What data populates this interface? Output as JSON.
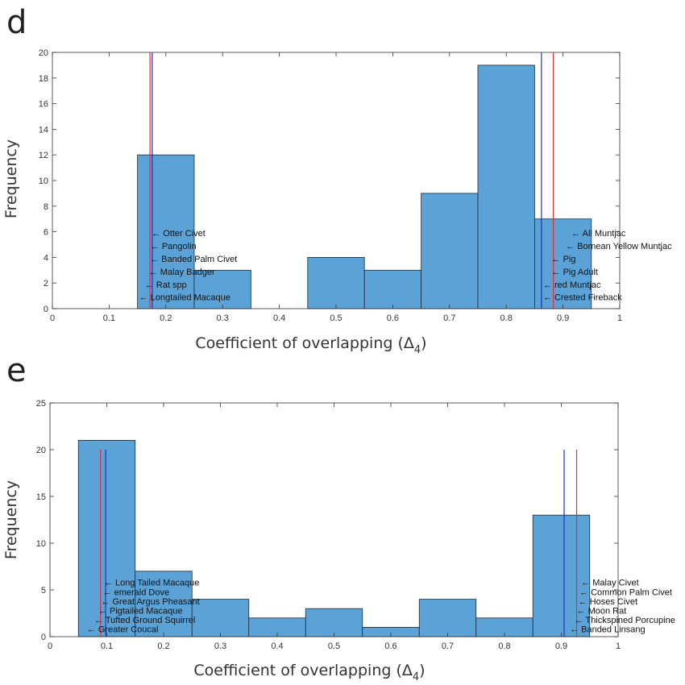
{
  "panels": [
    {
      "letter": "d",
      "ylabel": "Frequency",
      "xlabel_pre": "Coefficient of overlapping (Δ",
      "xlabel_sub": "4",
      "xlabel_post": ")"
    },
    {
      "letter": "e",
      "ylabel": "Frequency",
      "xlabel_pre": "Coefficient of overlapping (Δ",
      "xlabel_sub": "4",
      "xlabel_post": ")"
    }
  ],
  "chart_data": [
    {
      "type": "bar",
      "title": "",
      "xlabel": "Coefficient of overlapping (Δ4)",
      "ylabel": "Frequency",
      "xlim": [
        0,
        1
      ],
      "ylim": [
        0,
        20
      ],
      "xticks": [
        0,
        0.1,
        0.2,
        0.3,
        0.4,
        0.5,
        0.6,
        0.7,
        0.8,
        0.9,
        1
      ],
      "yticks": [
        0,
        2,
        4,
        6,
        8,
        10,
        12,
        14,
        16,
        18,
        20
      ],
      "bin_edges": [
        0.15,
        0.25,
        0.35,
        0.45,
        0.55,
        0.65,
        0.75,
        0.85,
        0.95
      ],
      "counts": [
        12,
        3,
        0,
        4,
        3,
        9,
        19,
        7
      ],
      "vlines": [
        {
          "x": 0.172,
          "color": "#e03030"
        },
        {
          "x": 0.176,
          "color": "#2030c0"
        },
        {
          "x": 0.862,
          "color": "#2030c0"
        },
        {
          "x": 0.883,
          "color": "#e03030"
        }
      ],
      "annotations": [
        {
          "text": "Otter Civet",
          "x": 0.175,
          "y": 5.9
        },
        {
          "text": "Pangolin",
          "x": 0.173,
          "y": 4.9
        },
        {
          "text": "Banded Palm Civet",
          "x": 0.172,
          "y": 3.9
        },
        {
          "text": "Malay Badger",
          "x": 0.17,
          "y": 2.9
        },
        {
          "text": "Rat spp",
          "x": 0.163,
          "y": 1.9
        },
        {
          "text": "Longtailed Macaque",
          "x": 0.153,
          "y": 0.9
        },
        {
          "text": "All Muntjac",
          "x": 0.915,
          "y": 5.9
        },
        {
          "text": "Bornean Yellow Muntjac",
          "x": 0.905,
          "y": 4.9
        },
        {
          "text": "Pig",
          "x": 0.88,
          "y": 3.9
        },
        {
          "text": "Pig Adult",
          "x": 0.88,
          "y": 2.9
        },
        {
          "text": "red Muntjac",
          "x": 0.865,
          "y": 1.9
        },
        {
          "text": "Crested Fireback",
          "x": 0.865,
          "y": 0.9
        }
      ]
    },
    {
      "type": "bar",
      "title": "",
      "xlabel": "Coefficient of overlapping (Δ4)",
      "ylabel": "Frequency",
      "xlim": [
        0,
        1
      ],
      "ylim": [
        0,
        25
      ],
      "xticks": [
        0,
        0.1,
        0.2,
        0.3,
        0.4,
        0.5,
        0.6,
        0.7,
        0.8,
        0.9,
        1
      ],
      "yticks": [
        0,
        5,
        10,
        15,
        20,
        25
      ],
      "bin_edges": [
        0.05,
        0.15,
        0.25,
        0.35,
        0.45,
        0.55,
        0.65,
        0.75,
        0.85,
        0.95
      ],
      "counts": [
        21,
        7,
        4,
        2,
        3,
        1,
        4,
        2,
        13
      ],
      "vlines": [
        {
          "x": 0.089,
          "color": "#e03030",
          "ymax": 20
        },
        {
          "x": 0.098,
          "color": "#2030c0",
          "ymax": 20
        },
        {
          "x": 0.905,
          "color": "#2030c0",
          "ymax": 20
        },
        {
          "x": 0.927,
          "color": "#e03030",
          "ymax": 20
        }
      ],
      "annotations": [
        {
          "text": "Long Tailed Macaque",
          "x": 0.095,
          "y": 5.8
        },
        {
          "text": "emerald Dove",
          "x": 0.093,
          "y": 4.8
        },
        {
          "text": "Great Argus Pheasant",
          "x": 0.09,
          "y": 3.8
        },
        {
          "text": "Pigtailed Macaque",
          "x": 0.085,
          "y": 2.8
        },
        {
          "text": "Tufted Ground Squirrel",
          "x": 0.078,
          "y": 1.8
        },
        {
          "text": "Greater Coucal",
          "x": 0.065,
          "y": 0.8
        },
        {
          "text": "Malay Civet",
          "x": 0.935,
          "y": 5.8
        },
        {
          "text": "Common Palm Civet",
          "x": 0.932,
          "y": 4.8
        },
        {
          "text": "Hoses Civet",
          "x": 0.93,
          "y": 3.8
        },
        {
          "text": "Moon Rat",
          "x": 0.927,
          "y": 2.8
        },
        {
          "text": "Thickspined Porcupine",
          "x": 0.923,
          "y": 1.8
        },
        {
          "text": "Banded Linsang",
          "x": 0.915,
          "y": 0.8
        }
      ]
    }
  ]
}
